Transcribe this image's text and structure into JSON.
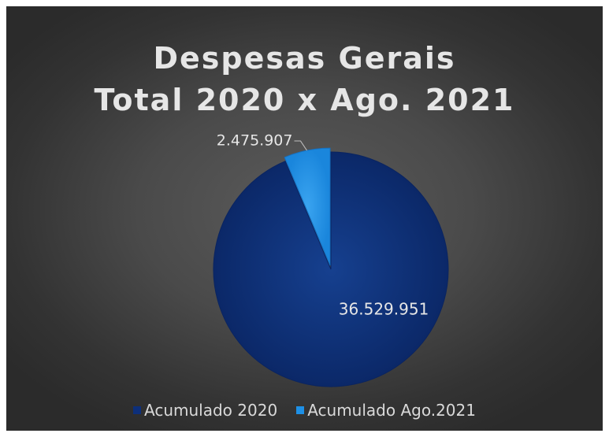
{
  "chart_data": {
    "type": "pie",
    "title_lines": [
      "Despesas Gerais",
      "Total 2020 x Ago. 2021"
    ],
    "categories": [
      "Acumulado 2020",
      "Acumulado Ago.2021"
    ],
    "values": [
      36529951,
      2475907
    ],
    "value_labels": [
      "36.529.951",
      "2.475.907"
    ],
    "colors": [
      "#0d2f7a",
      "#1e90e6"
    ],
    "legend_position": "bottom"
  }
}
